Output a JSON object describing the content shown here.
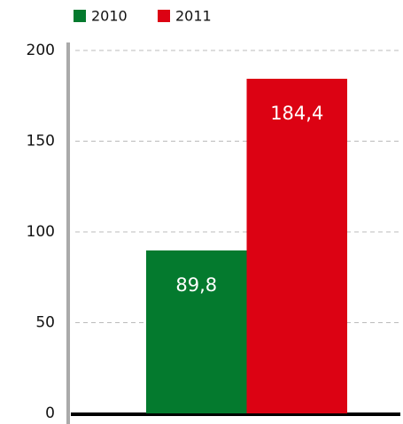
{
  "chart_data": {
    "type": "bar",
    "categories": [
      null
    ],
    "series": [
      {
        "name": "2010",
        "color": "#047a2e",
        "values": [
          89.8
        ],
        "value_labels": [
          "89,8"
        ]
      },
      {
        "name": "2011",
        "color": "#dc0213",
        "values": [
          184.4
        ],
        "value_labels": [
          "184,4"
        ]
      }
    ],
    "ylim": [
      0,
      200
    ],
    "yticks": [
      0,
      50,
      100,
      150,
      200
    ],
    "grid": true,
    "legend": "top-left"
  }
}
